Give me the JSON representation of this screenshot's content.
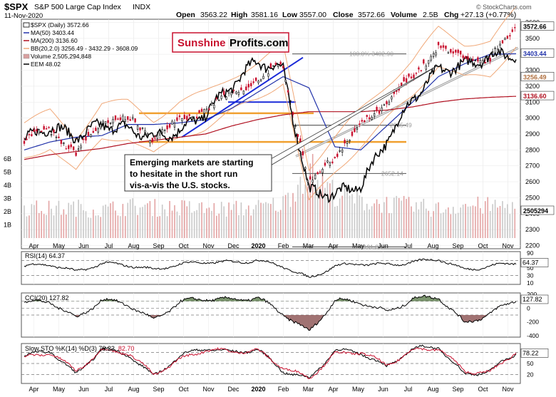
{
  "header": {
    "symbol": "$SPX",
    "name": "S&P 500 Large Cap Index",
    "exchange": "INDX",
    "date": "11-Nov-2020",
    "credit": "© StockCharts.com",
    "ohlc": {
      "open_label": "Open",
      "open": "3563.22",
      "high_label": "High",
      "high": "3581.16",
      "low_label": "Low",
      "low": "3557.00",
      "close_label": "Close",
      "close": "3572.66",
      "volume_label": "Volume",
      "volume": "2.5B",
      "chg_label": "Chg",
      "chg": "+27.13 (+0.77%)"
    }
  },
  "legend": {
    "price": "$SPX (Daily) 3572.66",
    "ma50": "MA(50) 3403.44",
    "ma200": "MA(200) 3136.60",
    "bb": "BB(20,2.0) 3256.49 - 3432.29 - 3608.09",
    "volume": "Volume 2,505,294,848",
    "eem": "EEM 48.02"
  },
  "logo": {
    "part1": "Sunshine",
    "part2": "Profits.com"
  },
  "annotation": {
    "lines": [
      "Emerging markets are starting",
      "to hesitate in the short run",
      "vis-a-vis the U.S. stocks."
    ]
  },
  "fib_labels": [
    "100.0% 3402.90",
    "2955.49",
    "2652.14",
    "2191.86"
  ],
  "price_badges": [
    "3572.66",
    "3403.44",
    "3256.49",
    "3136.60"
  ],
  "volume_badge": "2505294",
  "price_axis_ticks": [
    "3600",
    "3500",
    "3400",
    "3300",
    "3200",
    "3100",
    "3000",
    "2900",
    "2800",
    "2700",
    "2600",
    "2500",
    "2400",
    "2300",
    "2200"
  ],
  "volume_axis_ticks": [
    "6B",
    "5B",
    "4B",
    "3B",
    "2B",
    "1B"
  ],
  "months_main": [
    "Apr",
    "May",
    "Jun",
    "Jul",
    "Aug",
    "Sep",
    "Oct",
    "Nov",
    "Dec",
    "2020",
    "Feb",
    "Mar",
    "Apr",
    "May",
    "Jun",
    "Jul",
    "Aug",
    "Sep",
    "Oct",
    "Nov"
  ],
  "months_bottom": [
    "Apr",
    "May",
    "Jun",
    "Jul",
    "Aug",
    "Sep",
    "Oct",
    "Nov",
    "Dec",
    "2020",
    "Feb",
    "Mar",
    "Apr",
    "May",
    "Jun",
    "Jul",
    "Aug",
    "Sep",
    "Oct",
    "Nov"
  ],
  "rsi": {
    "title": "RSI(14) 64.37",
    "badge": "64.37",
    "ticks": [
      "90",
      "70",
      "50",
      "30",
      "10"
    ]
  },
  "cci": {
    "title": "CCI(20) 127.82",
    "badge": "127.82",
    "ticks": [
      "200",
      "0",
      "-200",
      "-400"
    ]
  },
  "sto": {
    "title_prefix": "Slow STO %K(14) %D(3) 78.22,",
    "title_d": "82.70",
    "badge": "78.22",
    "ticks": [
      "80",
      "50",
      "20"
    ]
  },
  "colors": {
    "up": "#000000",
    "down": "#c8102e",
    "ma50": "#2233aa",
    "ma200": "#b01020",
    "bb": "#f0a878",
    "eem": "#000000",
    "fib": "#f0a030",
    "trend_blue": "#1a2ad8",
    "brand_red": "#c8102e",
    "cci_fill_pos": "#5a7a4a",
    "cci_fill_neg": "#8a5050"
  },
  "chart_data": [
    {
      "type": "line",
      "title": "S&P 500 Large Cap Index (Daily)",
      "x_months": [
        "Apr",
        "May",
        "Jun",
        "Jul",
        "Aug",
        "Sep",
        "Oct",
        "Nov",
        "Dec",
        "2020",
        "Feb",
        "Mar",
        "Apr",
        "May",
        "Jun",
        "Jul",
        "Aug",
        "Sep",
        "Oct",
        "Nov"
      ],
      "y_range": [
        2180,
        3620
      ],
      "series": [
        {
          "name": "$SPX",
          "values": [
            2860,
            2930,
            2770,
            2980,
            2990,
            2880,
            2990,
            3050,
            3150,
            3230,
            3340,
            2580,
            2770,
            2940,
            3100,
            3250,
            3450,
            3360,
            3370,
            3572.66
          ]
        },
        {
          "name": "MA(50)",
          "values": [
            2800,
            2850,
            2880,
            2890,
            2960,
            2960,
            2970,
            2990,
            3060,
            3160,
            3260,
            3190,
            2820,
            2800,
            2950,
            3100,
            3260,
            3340,
            3400,
            3403.44
          ]
        },
        {
          "name": "MA(200)",
          "values": [
            2740,
            2770,
            2790,
            2810,
            2840,
            2860,
            2880,
            2900,
            2950,
            2990,
            3020,
            3040,
            3040,
            3040,
            3050,
            3070,
            3100,
            3120,
            3130,
            3136.6
          ]
        },
        {
          "name": "EEM",
          "values": [
            2860,
            2950,
            2880,
            2960,
            2930,
            2880,
            2920,
            3030,
            3200,
            3360,
            3300,
            2540,
            2520,
            2580,
            2860,
            3120,
            3300,
            3330,
            3390,
            3402
          ]
        }
      ],
      "annotations": [
        "100.0% 3402.90",
        "2955.49",
        "2652.14",
        "2191.86"
      ]
    },
    {
      "type": "bar",
      "title": "Volume 2,505,294,848",
      "y_range": [
        0,
        6000000000
      ],
      "x_months": [
        "Apr",
        "May",
        "Jun",
        "Jul",
        "Aug",
        "Sep",
        "Oct",
        "Nov",
        "Dec",
        "2020",
        "Feb",
        "Mar",
        "Apr",
        "May",
        "Jun",
        "Jul",
        "Aug",
        "Sep",
        "Oct",
        "Nov"
      ],
      "values": [
        2.3,
        2.2,
        2.3,
        2.1,
        2.4,
        2.3,
        2.3,
        2.2,
        2.2,
        2.3,
        2.6,
        5.3,
        3.4,
        2.8,
        2.6,
        2.4,
        2.2,
        2.5,
        2.4,
        2.5
      ],
      "unit": "B"
    },
    {
      "type": "line",
      "title": "RSI(14) 64.37",
      "y_range": [
        10,
        90
      ],
      "series": [
        {
          "name": "RSI(14)",
          "values": [
            55,
            60,
            40,
            62,
            58,
            45,
            60,
            66,
            65,
            70,
            55,
            22,
            55,
            62,
            58,
            65,
            75,
            45,
            55,
            64.37
          ]
        }
      ]
    },
    {
      "type": "line",
      "title": "CCI(20) 127.82",
      "y_range": [
        -400,
        200
      ],
      "series": [
        {
          "name": "CCI(20)",
          "values": [
            80,
            100,
            -150,
            120,
            60,
            -180,
            90,
            140,
            120,
            150,
            -80,
            -350,
            110,
            90,
            -60,
            130,
            170,
            -220,
            -80,
            127.82
          ]
        }
      ]
    },
    {
      "type": "line",
      "title": "Slow STO %K(14) %D(3)",
      "y_range": [
        0,
        100
      ],
      "series": [
        {
          "name": "%K",
          "values": [
            70,
            85,
            20,
            90,
            75,
            15,
            70,
            92,
            80,
            88,
            30,
            8,
            85,
            80,
            40,
            90,
            95,
            20,
            30,
            78.22
          ]
        },
        {
          "name": "%D",
          "values": [
            65,
            80,
            30,
            85,
            80,
            20,
            60,
            88,
            82,
            85,
            40,
            10,
            75,
            82,
            45,
            85,
            92,
            30,
            25,
            82.7
          ]
        }
      ]
    }
  ]
}
